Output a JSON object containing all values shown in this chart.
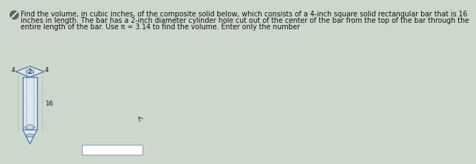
{
  "text_line1": "Find the volume, in cubic inches, of the composite solid below, which consists of a 4-inch square solid rectangular bar that is 16",
  "text_line2": "inches in length. The bar has a 2-inch diameter cylinder hole cut out of the center of the bar from the top of the bar through the",
  "text_line3": "entire length of the bar. Use π = 3.14 to find the volume. Enter only the number",
  "label_4_left": "4",
  "label_4_right": "4",
  "label_2": "2",
  "label_16": "16",
  "bg_color": "#ccd8cc",
  "bar_face": "#dce8f0",
  "bar_edge": "#5070a0",
  "text_color": "#111111",
  "answer_box_color": "#aabbcc",
  "icon_bg": "#555555"
}
